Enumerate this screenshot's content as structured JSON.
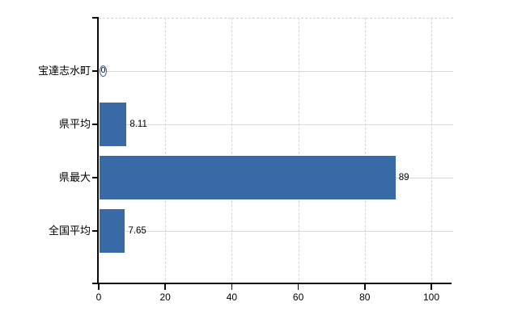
{
  "chart_data": {
    "type": "bar",
    "orientation": "horizontal",
    "categories": [
      "宝達志水町",
      "県平均",
      "県最大",
      "全国平均"
    ],
    "values": [
      0,
      8.11,
      89,
      7.65
    ],
    "value_labels": [
      "0",
      "8.11",
      "89",
      "7.65"
    ],
    "x_ticks": [
      "0",
      "20",
      "40",
      "60",
      "80",
      "100"
    ],
    "x_tick_values": [
      0,
      20,
      40,
      60,
      80,
      100
    ],
    "xlim": [
      0,
      100
    ],
    "legend": "none",
    "grid": "dashed vertical gridlines at each x tick, dashed top boundary, solid light row line through each category",
    "colors": {
      "bar_fill": "#3a6aa6",
      "zero_marker_ring": "#2c5f9e",
      "gridline": "#d4d4d4",
      "row_line": "#d6dad6",
      "axis": "#0a0a0a",
      "text": "#000000",
      "background": "#ffffff"
    }
  }
}
